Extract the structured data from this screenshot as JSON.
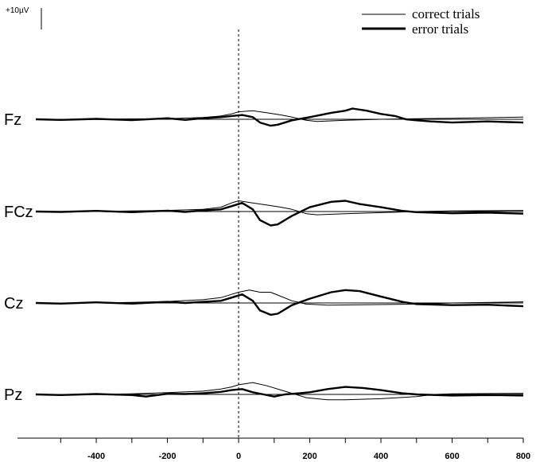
{
  "chart_data": {
    "type": "line",
    "title": "",
    "xlabel": "",
    "ylabel": "",
    "xlim": [
      -570,
      800
    ],
    "x_ticks": [
      -400,
      -200,
      0,
      200,
      400,
      600,
      800
    ],
    "scale_bar_label": "+10µV",
    "scale_bar_value": 10,
    "legend_position": "top-right",
    "series_styles": {
      "correct": {
        "name": "correct trials",
        "color": "#000000",
        "width": "thin"
      },
      "error": {
        "name": "error trials",
        "color": "#000000",
        "width": "thick"
      }
    },
    "channels": [
      {
        "label": "Fz",
        "correct": [
          [
            -570,
            0
          ],
          [
            -400,
            0
          ],
          [
            -300,
            0.2
          ],
          [
            -200,
            0.3
          ],
          [
            -100,
            0.8
          ],
          [
            -50,
            1.5
          ],
          [
            -20,
            2.5
          ],
          [
            0,
            3.5
          ],
          [
            40,
            4
          ],
          [
            80,
            3
          ],
          [
            120,
            2
          ],
          [
            150,
            1
          ],
          [
            190,
            -0.5
          ],
          [
            220,
            -1
          ],
          [
            300,
            -0.5
          ],
          [
            400,
            0
          ],
          [
            500,
            0.3
          ],
          [
            600,
            0.5
          ],
          [
            800,
            1
          ]
        ],
        "error": [
          [
            -570,
            0
          ],
          [
            -500,
            -0.3
          ],
          [
            -400,
            0.2
          ],
          [
            -300,
            -0.4
          ],
          [
            -200,
            0.5
          ],
          [
            -150,
            -0.3
          ],
          [
            -100,
            0.5
          ],
          [
            -50,
            1
          ],
          [
            -20,
            1.5
          ],
          [
            10,
            2
          ],
          [
            40,
            1
          ],
          [
            60,
            -1.5
          ],
          [
            90,
            -3
          ],
          [
            110,
            -2.5
          ],
          [
            150,
            -0.5
          ],
          [
            200,
            1
          ],
          [
            260,
            3
          ],
          [
            300,
            4
          ],
          [
            320,
            5
          ],
          [
            360,
            4
          ],
          [
            400,
            2.5
          ],
          [
            440,
            1.5
          ],
          [
            470,
            0
          ],
          [
            500,
            -0.5
          ],
          [
            540,
            -1
          ],
          [
            600,
            -1.5
          ],
          [
            700,
            -1
          ],
          [
            800,
            -1.5
          ]
        ]
      },
      {
        "label": "FCz",
        "correct": [
          [
            -570,
            0
          ],
          [
            -400,
            0
          ],
          [
            -300,
            0.3
          ],
          [
            -200,
            0.5
          ],
          [
            -100,
            1
          ],
          [
            -50,
            2
          ],
          [
            -20,
            4
          ],
          [
            0,
            5
          ],
          [
            40,
            4
          ],
          [
            80,
            3
          ],
          [
            120,
            2
          ],
          [
            150,
            1
          ],
          [
            190,
            -1
          ],
          [
            220,
            -1.5
          ],
          [
            300,
            -1
          ],
          [
            400,
            -0.5
          ],
          [
            500,
            0
          ],
          [
            600,
            0.3
          ],
          [
            800,
            0.5
          ]
        ],
        "error": [
          [
            -570,
            0
          ],
          [
            -500,
            -0.2
          ],
          [
            -400,
            0.3
          ],
          [
            -300,
            -0.3
          ],
          [
            -200,
            0.4
          ],
          [
            -150,
            -0.2
          ],
          [
            -100,
            0.5
          ],
          [
            -50,
            1
          ],
          [
            -20,
            2.5
          ],
          [
            10,
            4
          ],
          [
            40,
            1
          ],
          [
            60,
            -4
          ],
          [
            90,
            -6.5
          ],
          [
            110,
            -6
          ],
          [
            150,
            -2
          ],
          [
            200,
            2
          ],
          [
            260,
            4.5
          ],
          [
            300,
            5
          ],
          [
            340,
            3.5
          ],
          [
            400,
            2
          ],
          [
            460,
            0.3
          ],
          [
            500,
            -0.3
          ],
          [
            600,
            -0.8
          ],
          [
            700,
            -0.5
          ],
          [
            800,
            -1
          ]
        ]
      },
      {
        "label": "Cz",
        "correct": [
          [
            -570,
            0
          ],
          [
            -400,
            0
          ],
          [
            -300,
            0.3
          ],
          [
            -200,
            0.7
          ],
          [
            -100,
            1.5
          ],
          [
            -50,
            2.5
          ],
          [
            -20,
            4
          ],
          [
            0,
            5
          ],
          [
            30,
            6
          ],
          [
            60,
            5
          ],
          [
            90,
            5
          ],
          [
            120,
            3
          ],
          [
            150,
            1
          ],
          [
            190,
            -0.5
          ],
          [
            250,
            -1
          ],
          [
            350,
            -0.8
          ],
          [
            500,
            -0.5
          ],
          [
            600,
            0
          ],
          [
            800,
            0.5
          ]
        ],
        "error": [
          [
            -570,
            0
          ],
          [
            -500,
            -0.3
          ],
          [
            -400,
            0.3
          ],
          [
            -300,
            -0.3
          ],
          [
            -200,
            0.5
          ],
          [
            -150,
            0
          ],
          [
            -100,
            0.5
          ],
          [
            -50,
            1
          ],
          [
            -20,
            2.5
          ],
          [
            10,
            4
          ],
          [
            40,
            1
          ],
          [
            60,
            -3.5
          ],
          [
            90,
            -5.5
          ],
          [
            110,
            -5
          ],
          [
            150,
            -1
          ],
          [
            200,
            2
          ],
          [
            260,
            5
          ],
          [
            300,
            6
          ],
          [
            340,
            5.5
          ],
          [
            400,
            3
          ],
          [
            460,
            0.5
          ],
          [
            500,
            -0.5
          ],
          [
            600,
            -1
          ],
          [
            700,
            -0.8
          ],
          [
            800,
            -1.5
          ]
        ]
      },
      {
        "label": "Pz",
        "correct": [
          [
            -570,
            0
          ],
          [
            -400,
            0
          ],
          [
            -300,
            0.3
          ],
          [
            -200,
            0.8
          ],
          [
            -100,
            1.5
          ],
          [
            -50,
            2.5
          ],
          [
            -20,
            3.5
          ],
          [
            0,
            4.5
          ],
          [
            40,
            5.5
          ],
          [
            80,
            4
          ],
          [
            120,
            2
          ],
          [
            150,
            0.5
          ],
          [
            190,
            -1.5
          ],
          [
            250,
            -2.5
          ],
          [
            300,
            -2.5
          ],
          [
            400,
            -2
          ],
          [
            500,
            -1
          ],
          [
            550,
            0
          ],
          [
            600,
            0.3
          ],
          [
            800,
            0.5
          ]
        ],
        "error": [
          [
            -570,
            0
          ],
          [
            -500,
            -0.3
          ],
          [
            -400,
            0.2
          ],
          [
            -300,
            -0.3
          ],
          [
            -260,
            -1
          ],
          [
            -200,
            0.3
          ],
          [
            -150,
            0.2
          ],
          [
            -100,
            0.5
          ],
          [
            -50,
            1.2
          ],
          [
            -20,
            2
          ],
          [
            10,
            2.5
          ],
          [
            40,
            1
          ],
          [
            70,
            0
          ],
          [
            100,
            -1
          ],
          [
            130,
            0
          ],
          [
            170,
            0.5
          ],
          [
            200,
            1
          ],
          [
            250,
            2.5
          ],
          [
            300,
            3.5
          ],
          [
            350,
            3
          ],
          [
            400,
            2
          ],
          [
            460,
            0.5
          ],
          [
            500,
            0
          ],
          [
            600,
            -0.5
          ],
          [
            700,
            -0.3
          ],
          [
            800,
            -0.5
          ]
        ]
      }
    ]
  }
}
